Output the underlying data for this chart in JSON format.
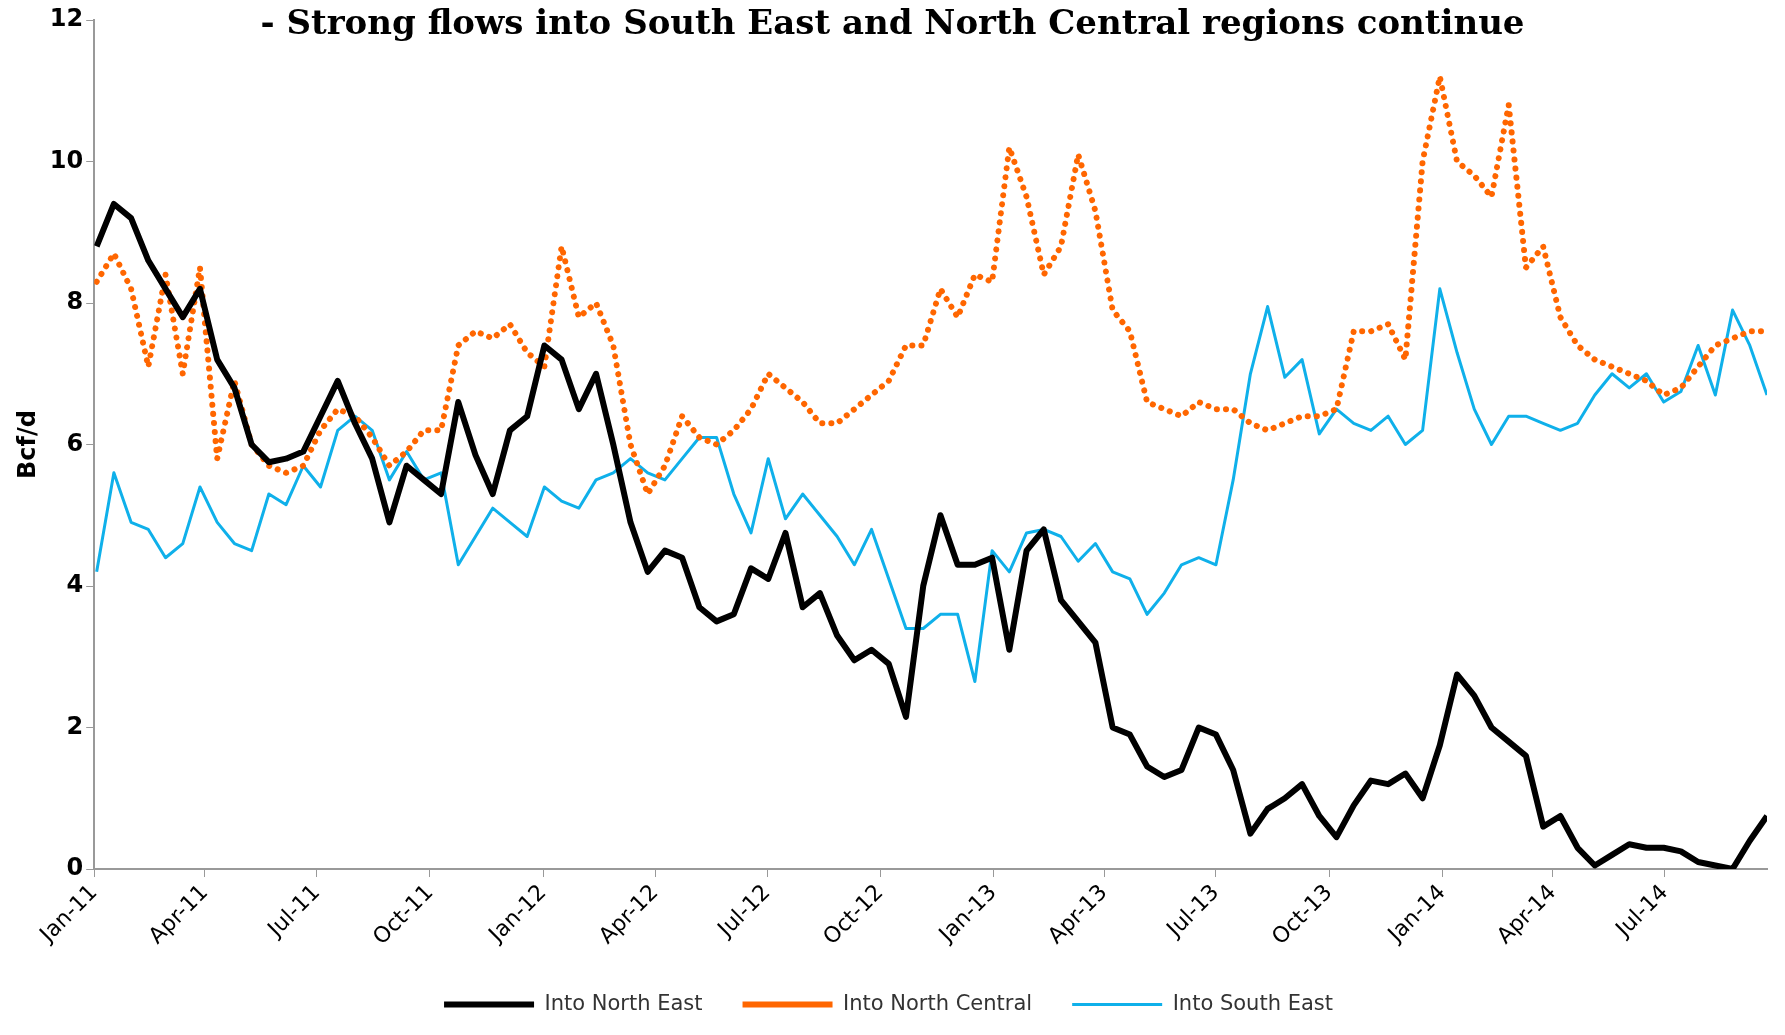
{
  "chart_data": {
    "type": "line",
    "title": "- Strong flows into South East and North Central regions continue",
    "ylabel": "Bcf/d",
    "x": [
      "2011-01-03",
      "2011-01-17",
      "2011-01-31",
      "2011-02-14",
      "2011-02-28",
      "2011-03-14",
      "2011-03-28",
      "2011-04-11",
      "2011-04-25",
      "2011-05-09",
      "2011-05-23",
      "2011-06-06",
      "2011-06-20",
      "2011-07-04",
      "2011-07-18",
      "2011-08-01",
      "2011-08-15",
      "2011-08-29",
      "2011-09-12",
      "2011-09-26",
      "2011-10-10",
      "2011-10-24",
      "2011-11-07",
      "2011-11-21",
      "2011-12-05",
      "2011-12-19",
      "2012-01-02",
      "2012-01-16",
      "2012-01-30",
      "2012-02-13",
      "2012-02-27",
      "2012-03-12",
      "2012-03-26",
      "2012-04-09",
      "2012-04-23",
      "2012-05-07",
      "2012-05-21",
      "2012-06-04",
      "2012-06-18",
      "2012-07-02",
      "2012-07-16",
      "2012-07-30",
      "2012-08-13",
      "2012-08-27",
      "2012-09-10",
      "2012-09-24",
      "2012-10-08",
      "2012-10-22",
      "2012-11-05",
      "2012-11-19",
      "2012-12-03",
      "2012-12-17",
      "2012-12-31",
      "2013-01-14",
      "2013-01-28",
      "2013-02-11",
      "2013-02-25",
      "2013-03-11",
      "2013-03-25",
      "2013-04-08",
      "2013-04-22",
      "2013-05-06",
      "2013-05-20",
      "2013-06-03",
      "2013-06-17",
      "2013-07-01",
      "2013-07-15",
      "2013-07-29",
      "2013-08-12",
      "2013-08-26",
      "2013-09-09",
      "2013-09-23",
      "2013-10-07",
      "2013-10-21",
      "2013-11-04",
      "2013-11-18",
      "2013-12-02",
      "2013-12-16",
      "2013-12-30",
      "2014-01-13",
      "2014-01-27",
      "2014-02-10",
      "2014-02-24",
      "2014-03-10",
      "2014-03-24",
      "2014-04-07",
      "2014-04-21",
      "2014-05-05",
      "2014-05-19",
      "2014-06-02",
      "2014-06-16",
      "2014-06-30",
      "2014-07-14",
      "2014-07-28",
      "2014-08-11",
      "2014-08-25",
      "2014-09-08",
      "2014-09-22"
    ],
    "series": [
      {
        "name": "Into North East",
        "color": "#000000",
        "line_style": "solid",
        "values": [
          8.8,
          9.4,
          9.2,
          8.6,
          8.2,
          7.8,
          8.2,
          7.2,
          6.8,
          6.0,
          5.75,
          5.8,
          5.9,
          6.4,
          6.9,
          6.3,
          5.8,
          4.9,
          5.7,
          5.5,
          5.3,
          6.6,
          5.85,
          5.3,
          6.2,
          6.4,
          7.4,
          7.2,
          6.5,
          7.0,
          6.0,
          4.9,
          4.2,
          4.5,
          4.4,
          3.7,
          3.5,
          3.6,
          4.25,
          4.1,
          4.75,
          3.7,
          3.9,
          3.3,
          2.95,
          3.1,
          2.9,
          2.15,
          4.0,
          5.0,
          4.3,
          4.3,
          4.4,
          3.1,
          4.5,
          4.8,
          3.8,
          3.5,
          3.2,
          2.0,
          1.9,
          1.45,
          1.3,
          1.4,
          2.0,
          1.9,
          1.4,
          0.5,
          0.85,
          1.0,
          1.2,
          0.75,
          0.45,
          0.9,
          1.25,
          1.2,
          1.35,
          1.0,
          1.75,
          2.75,
          2.45,
          2.0,
          1.8,
          1.6,
          0.6,
          0.75,
          0.3,
          0.05,
          0.2,
          0.35,
          0.3,
          0.3,
          0.25,
          0.1,
          0.05,
          0.0,
          0.4,
          0.75
        ]
      },
      {
        "name": "Into North Central",
        "color": "#ff6600",
        "line_style": "dotted",
        "values": [
          8.3,
          8.7,
          8.2,
          7.1,
          8.4,
          7.0,
          8.5,
          5.8,
          6.9,
          6.0,
          5.7,
          5.6,
          5.7,
          6.2,
          6.5,
          6.4,
          6.1,
          5.7,
          5.9,
          6.2,
          6.2,
          7.4,
          7.6,
          7.5,
          7.7,
          7.3,
          7.1,
          8.8,
          7.8,
          8.0,
          7.4,
          6.0,
          5.3,
          5.7,
          6.4,
          6.1,
          6.0,
          6.2,
          6.5,
          7.0,
          6.8,
          6.6,
          6.3,
          6.3,
          6.5,
          6.7,
          6.9,
          7.4,
          7.4,
          8.2,
          7.8,
          8.4,
          8.3,
          10.2,
          9.5,
          8.4,
          8.8,
          10.1,
          9.3,
          7.9,
          7.6,
          6.6,
          6.5,
          6.4,
          6.6,
          6.5,
          6.5,
          6.3,
          6.2,
          6.3,
          6.4,
          6.4,
          6.5,
          7.6,
          7.6,
          7.7,
          7.2,
          10.0,
          11.2,
          10.0,
          9.8,
          9.5,
          10.8,
          8.5,
          8.8,
          7.8,
          7.4,
          7.2,
          7.1,
          7.0,
          6.9,
          6.7,
          6.8,
          7.1,
          7.4,
          7.5,
          7.6,
          7.6
        ]
      },
      {
        "name": "Into South East",
        "color": "#0fb0ea",
        "line_style": "solid",
        "values": [
          4.2,
          5.6,
          4.9,
          4.8,
          4.4,
          4.6,
          5.4,
          4.9,
          4.6,
          4.5,
          5.3,
          5.15,
          5.7,
          5.4,
          6.2,
          6.4,
          6.2,
          5.5,
          5.9,
          5.5,
          5.6,
          4.3,
          4.7,
          5.1,
          4.9,
          4.7,
          5.4,
          5.2,
          5.1,
          5.5,
          5.6,
          5.8,
          5.6,
          5.5,
          5.8,
          6.1,
          6.1,
          5.3,
          4.75,
          5.8,
          4.95,
          5.3,
          5.0,
          4.7,
          4.3,
          4.8,
          4.1,
          3.4,
          3.4,
          3.6,
          3.6,
          2.65,
          4.5,
          4.2,
          4.75,
          4.8,
          4.7,
          4.35,
          4.6,
          4.2,
          4.1,
          3.6,
          3.9,
          4.3,
          4.4,
          4.3,
          5.5,
          7.0,
          7.95,
          6.95,
          7.2,
          6.15,
          6.5,
          6.3,
          6.2,
          6.4,
          6.0,
          6.2,
          8.2,
          7.3,
          6.5,
          6.0,
          6.4,
          6.4,
          6.3,
          6.2,
          6.3,
          6.7,
          7.0,
          6.8,
          7.0,
          6.6,
          6.75,
          7.4,
          6.7,
          7.9,
          7.4,
          6.7
        ]
      }
    ],
    "xlim": [
      "2011-01-01",
      "2014-09-22"
    ],
    "xticks": [
      {
        "value": "2011-01-01",
        "label": "Jan-11"
      },
      {
        "value": "2011-04-01",
        "label": "Apr-11"
      },
      {
        "value": "2011-07-01",
        "label": "Jul-11"
      },
      {
        "value": "2011-10-01",
        "label": "Oct-11"
      },
      {
        "value": "2012-01-01",
        "label": "Jan-12"
      },
      {
        "value": "2012-04-01",
        "label": "Apr-12"
      },
      {
        "value": "2012-07-01",
        "label": "Jul-12"
      },
      {
        "value": "2012-10-01",
        "label": "Oct-12"
      },
      {
        "value": "2013-01-01",
        "label": "Jan-13"
      },
      {
        "value": "2013-04-01",
        "label": "Apr-13"
      },
      {
        "value": "2013-07-01",
        "label": "Jul-13"
      },
      {
        "value": "2013-10-01",
        "label": "Oct-13"
      },
      {
        "value": "2014-01-01",
        "label": "Jan-14"
      },
      {
        "value": "2014-04-01",
        "label": "Apr-14"
      },
      {
        "value": "2014-07-01",
        "label": "Jul-14"
      }
    ],
    "ylim": [
      0,
      12
    ],
    "yticks": [
      0,
      2,
      4,
      6,
      8,
      10,
      12
    ],
    "grid": false,
    "legend": "bottom",
    "marker": "none"
  }
}
